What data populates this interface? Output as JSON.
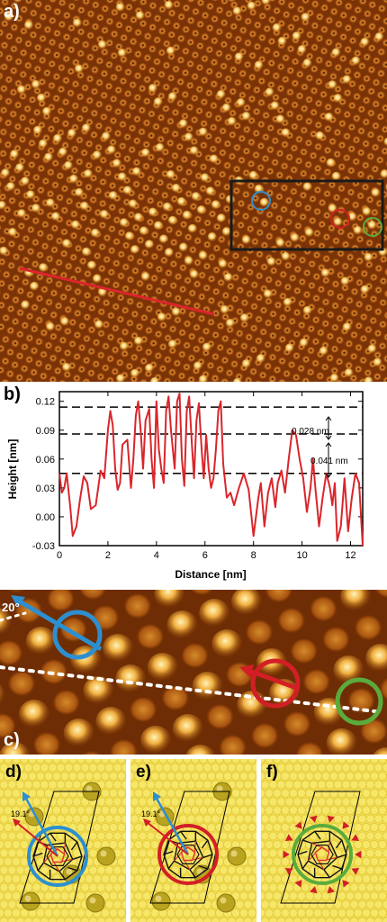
{
  "figure": {
    "panel_labels": {
      "a": "a)",
      "b": "b)",
      "c": "c)",
      "d": "d)",
      "e": "e)",
      "f": "f)"
    },
    "angle_c": "20°",
    "angle_d": "19.1°",
    "angle_e": "19.1°",
    "colors": {
      "stm_dark": "#5a2300",
      "stm_mid": "#b2560e",
      "stm_bright": "#ffe8a0",
      "profile_line": "#d9262b",
      "marker_blue": "#2d8fcf",
      "marker_red": "#d21f26",
      "marker_green": "#5bab3c",
      "substrate": "#f3de4f",
      "adatom": "#a89518"
    }
  },
  "chart_data": {
    "type": "line",
    "xlabel": "Distance [nm]",
    "ylabel": "Height [nm]",
    "xlim": [
      0,
      12.5
    ],
    "ylim": [
      -0.03,
      0.13
    ],
    "xticks": [
      0,
      2,
      4,
      6,
      8,
      10,
      12
    ],
    "yticks": [
      -0.03,
      0.0,
      0.03,
      0.06,
      0.09,
      0.12
    ],
    "ytick_labels": [
      "-0.03",
      "0.00",
      "0.03",
      "0.06",
      "0.09",
      "0.12"
    ],
    "hlines": [
      0.114,
      0.086,
      0.045
    ],
    "annotations": [
      "0.028 nm",
      "0.041 nm"
    ],
    "series": [
      {
        "x": [
          0.0,
          0.1,
          0.2,
          0.3,
          0.45,
          0.55,
          0.7,
          0.85,
          1.0,
          1.15,
          1.3,
          1.5,
          1.7,
          1.85,
          2.0,
          2.1,
          2.2,
          2.3,
          2.4,
          2.5,
          2.6,
          2.8,
          2.95,
          3.05,
          3.15,
          3.25,
          3.35,
          3.45,
          3.55,
          3.7,
          3.8,
          3.9,
          4.0,
          4.1,
          4.2,
          4.3,
          4.4,
          4.5,
          4.6,
          4.75,
          4.85,
          4.95,
          5.05,
          5.15,
          5.25,
          5.35,
          5.45,
          5.55,
          5.65,
          5.75,
          5.85,
          5.95,
          6.05,
          6.15,
          6.25,
          6.35,
          6.45,
          6.55,
          6.65,
          6.75,
          6.9,
          7.05,
          7.2,
          7.4,
          7.6,
          7.8,
          8.0,
          8.1,
          8.2,
          8.3,
          8.45,
          8.6,
          8.75,
          8.9,
          9.0,
          9.15,
          9.3,
          9.45,
          9.6,
          9.75,
          9.9,
          10.05,
          10.2,
          10.35,
          10.45,
          10.55,
          10.7,
          10.85,
          11.0,
          11.15,
          11.25,
          11.35,
          11.45,
          11.6,
          11.75,
          11.9,
          12.05,
          12.2,
          12.35,
          12.5
        ],
        "y": [
          0.045,
          0.025,
          0.03,
          0.045,
          0.01,
          -0.02,
          -0.01,
          0.018,
          0.042,
          0.035,
          0.008,
          0.012,
          0.048,
          0.04,
          0.09,
          0.11,
          0.095,
          0.05,
          0.028,
          0.035,
          0.075,
          0.08,
          0.03,
          0.06,
          0.105,
          0.12,
          0.09,
          0.05,
          0.1,
          0.112,
          0.06,
          0.03,
          0.12,
          0.07,
          0.05,
          0.035,
          0.11,
          0.125,
          0.09,
          0.05,
          0.12,
          0.128,
          0.06,
          0.032,
          0.11,
          0.125,
          0.08,
          0.04,
          0.1,
          0.118,
          0.075,
          0.04,
          0.085,
          0.05,
          0.03,
          0.04,
          0.07,
          0.11,
          0.12,
          0.055,
          0.02,
          0.025,
          0.012,
          0.03,
          0.045,
          0.028,
          -0.02,
          0.0,
          0.02,
          0.035,
          -0.01,
          0.025,
          0.04,
          0.01,
          0.035,
          0.048,
          0.025,
          0.06,
          0.09,
          0.085,
          0.06,
          0.04,
          0.005,
          0.03,
          0.06,
          0.03,
          -0.01,
          0.02,
          0.045,
          0.03,
          0.012,
          0.035,
          -0.025,
          -0.01,
          0.04,
          -0.015,
          0.02,
          0.045,
          0.035,
          -0.03
        ]
      }
    ]
  }
}
